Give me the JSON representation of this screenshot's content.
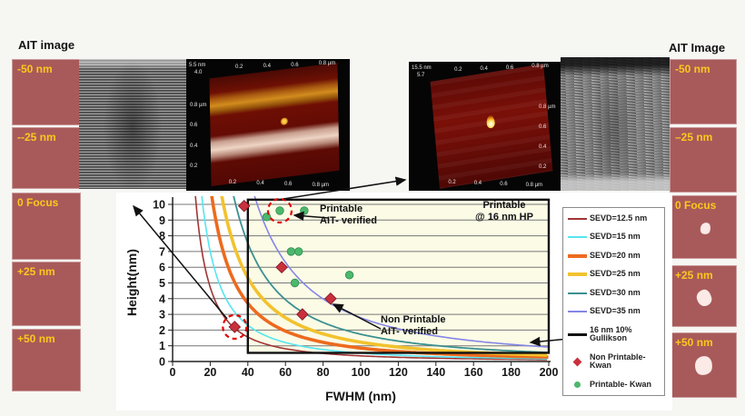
{
  "left_panel": {
    "title": "AIT image",
    "boxes": [
      "-50 nm",
      "--25 nm",
      "0 Focus",
      "+25 nm",
      "+50 nm"
    ]
  },
  "right_panel": {
    "title": "AIT Image",
    "boxes": [
      "-50 nm",
      "–25 nm",
      "0 Focus",
      "+25 nm",
      "+50 nm"
    ]
  },
  "afm_left": {
    "scale_max": "5.5 nm",
    "scale_value": "4.0",
    "axis_ticks": [
      "0.2",
      "0.4",
      "0.6",
      "0.8 µm"
    ]
  },
  "afm_right": {
    "scale_max": "15.5 nm",
    "scale_value": "5.7",
    "axis_ticks": [
      "0.2",
      "0.4",
      "0.6",
      "0.8 µm"
    ]
  },
  "chart_data": {
    "type": "line",
    "xlabel": "FWHM (nm)",
    "ylabel": "Height(nm)",
    "xlim": [
      0,
      200
    ],
    "ylim": [
      0,
      10
    ],
    "xticks": [
      0,
      20,
      40,
      60,
      80,
      100,
      120,
      140,
      160,
      180,
      200
    ],
    "yticks": [
      0,
      1,
      2,
      3,
      4,
      5,
      6,
      7,
      8,
      9,
      10
    ],
    "grid": "horizontal",
    "curve_model": "height = 10 * (fwhm_at_height10 / FWHM)^1.6",
    "series": [
      {
        "name": "SEVD=12.5 nm",
        "color": "#A03535",
        "line_width": 1.6,
        "fwhm_at_height10": 12.5
      },
      {
        "name": "SEVD=15 nm",
        "color": "#55E6F0",
        "line_width": 1.6,
        "fwhm_at_height10": 16
      },
      {
        "name": "SEVD=20 nm",
        "color": "#ED6A1E",
        "line_width": 3.6,
        "fwhm_at_height10": 21.5
      },
      {
        "name": "SEVD=25 nm",
        "color": "#F2C22E",
        "line_width": 3.6,
        "fwhm_at_height10": 27
      },
      {
        "name": "SEVD=30 nm",
        "color": "#3B9090",
        "line_width": 1.8,
        "fwhm_at_height10": 33.5
      },
      {
        "name": "SEVD=35 nm",
        "color": "#8585E8",
        "line_width": 1.6,
        "fwhm_at_height10": 45
      }
    ],
    "threshold_box": {
      "name": "16 nm 10% Gullikson",
      "color": "#111111",
      "fill": "#FBFBE6",
      "fwhm_range": [
        40,
        200
      ],
      "height_range": [
        0.55,
        10.3
      ]
    },
    "scatter": [
      {
        "name": "Non Printable-Kwan",
        "marker": "diamond",
        "color": "#C9303C",
        "points": [
          [
            38,
            9.9
          ],
          [
            58,
            6.0
          ],
          [
            69,
            3.0
          ],
          [
            84,
            4.0
          ],
          [
            33,
            2.2
          ]
        ]
      },
      {
        "name": "Printable- Kwan",
        "marker": "circle",
        "color": "#4CB86B",
        "points": [
          [
            50,
            9.2
          ],
          [
            57,
            9.6
          ],
          [
            70,
            9.6
          ],
          [
            63,
            7.0
          ],
          [
            67,
            7.0
          ],
          [
            65,
            5.0
          ],
          [
            94,
            5.5
          ]
        ]
      }
    ],
    "highlight_circles": [
      {
        "fwhm": 57,
        "height": 9.6
      },
      {
        "fwhm": 33,
        "height": 2.2
      }
    ],
    "legend": [
      {
        "swatch": "line",
        "color": "#A03535",
        "weight": 2,
        "label": "SEVD=12.5 nm"
      },
      {
        "swatch": "line",
        "color": "#55E6F0",
        "weight": 2,
        "label": "SEVD=15 nm"
      },
      {
        "swatch": "line",
        "color": "#ED6A1E",
        "weight": 4,
        "label": "SEVD=20 nm"
      },
      {
        "swatch": "line",
        "color": "#F2C22E",
        "weight": 4,
        "label": "SEVD=25 nm"
      },
      {
        "swatch": "line",
        "color": "#3B9090",
        "weight": 2,
        "label": "SEVD=30 nm"
      },
      {
        "swatch": "line",
        "color": "#8585E8",
        "weight": 2,
        "label": "SEVD=35 nm"
      },
      {
        "swatch": "line",
        "color": "#111111",
        "weight": 3,
        "label": "16 nm 10%",
        "label2": "Gullikson"
      },
      {
        "swatch": "diamond",
        "color": "#C9303C",
        "label": "Non Printable-",
        "label2": "Kwan"
      },
      {
        "swatch": "circle",
        "color": "#4CB86B",
        "label": "Printable- Kwan"
      }
    ],
    "annotations": {
      "printable_verified": {
        "line1": "Printable",
        "line2": "AIT- verified"
      },
      "printable_hp": {
        "line1": "Printable",
        "line2": "@ 16 nm HP"
      },
      "non_printable_verified": {
        "line1": "Non Printable",
        "line2": "AIT- verified"
      }
    }
  }
}
